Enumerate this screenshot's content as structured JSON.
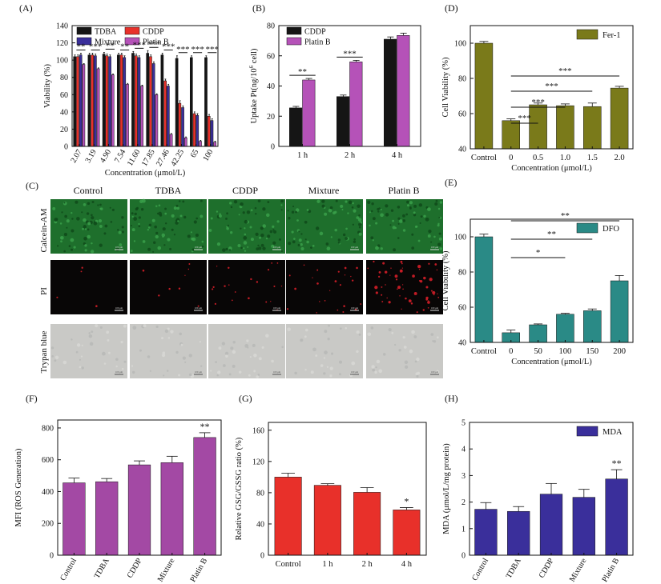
{
  "colors": {
    "black": "#151515",
    "red": "#e8302a",
    "blue": "#3a2f9b",
    "pink": "#b552b8",
    "olive": "#7a7a1a",
    "teal": "#2a8a86",
    "purple_f": "#a349a4",
    "red_g": "#e8302a",
    "navy_h": "#3a2f9b"
  },
  "chart_data": [
    {
      "panel": "(A)",
      "type": "bar",
      "title": "",
      "ylabel": "Viability (%)",
      "xlabel": "Concentration (μmol/L)",
      "ylim": [
        0,
        140
      ],
      "yticks": [
        "0",
        "20",
        "40",
        "60",
        "80",
        "100",
        "120",
        "140"
      ],
      "categories": [
        "2.07",
        "3.19",
        "4.90",
        "7.54",
        "11.60",
        "17.85",
        "27.46",
        "42.25",
        "65",
        "100"
      ],
      "series": [
        {
          "name": "TDBA",
          "color": "#151515",
          "values": [
            104,
            106,
            107,
            106,
            108,
            108,
            106,
            102,
            103,
            103
          ],
          "err": [
            2,
            2,
            2,
            2,
            2,
            3,
            2,
            3,
            2,
            2
          ]
        },
        {
          "name": "CDDP",
          "color": "#e8302a",
          "values": [
            104,
            106,
            105,
            106,
            105,
            104,
            76,
            50,
            38,
            35
          ],
          "err": [
            2,
            2,
            2,
            2,
            2,
            2,
            2,
            3,
            2,
            2
          ]
        },
        {
          "name": "Mixture",
          "color": "#3a2f9b",
          "values": [
            106,
            105,
            104,
            103,
            103,
            96,
            70,
            45,
            36,
            30
          ],
          "err": [
            2,
            2,
            2,
            2,
            2,
            2,
            2,
            2,
            2,
            2
          ]
        },
        {
          "name": "Platin B",
          "color": "#b552b8",
          "values": [
            95,
            90,
            83,
            72,
            70,
            60,
            14,
            10,
            6,
            5
          ],
          "err": [
            1,
            1,
            1,
            1,
            1,
            1,
            1,
            1,
            1,
            1
          ]
        }
      ],
      "annotations": [
        "**",
        "***",
        "**",
        "**",
        "***",
        "***",
        "***",
        "***",
        "***",
        "***"
      ]
    },
    {
      "panel": "(B)",
      "type": "bar",
      "ylabel": "Uptake Pt(ng/10",
      "ylabel_sup": "6",
      "ylabel_end": " cell)",
      "ylim": [
        0,
        80
      ],
      "yticks": [
        "0",
        "20",
        "40",
        "60",
        "80"
      ],
      "categories": [
        "1 h",
        "2 h",
        "4 h"
      ],
      "series": [
        {
          "name": "CDDP",
          "color": "#151515",
          "values": [
            25.5,
            33,
            71
          ],
          "err": [
            1,
            1,
            1.5
          ]
        },
        {
          "name": "Platin B",
          "color": "#b552b8",
          "values": [
            44,
            56,
            73.5
          ],
          "err": [
            1,
            1,
            1.5
          ]
        }
      ],
      "annotations": [
        "**",
        "***",
        ""
      ]
    },
    {
      "panel": "(D)",
      "type": "bar",
      "legend": "Fer-1",
      "ylabel": "Cell Viability (%)",
      "xlabel": "Concentration (μmol/L)",
      "ylim": [
        40,
        110
      ],
      "yticks": [
        "40",
        "60",
        "80",
        "100"
      ],
      "categories": [
        "Control",
        "0",
        "0.5",
        "1.0",
        "1.5",
        "2.0"
      ],
      "values": [
        100,
        56,
        65,
        64.5,
        64,
        74.5
      ],
      "err": [
        1,
        1,
        1,
        1,
        2,
        1
      ],
      "annotations": [
        "***",
        "***",
        "***",
        "***"
      ]
    },
    {
      "panel": "(E)",
      "type": "bar",
      "legend": "DFO",
      "ylabel": "Cell Viability (%)",
      "xlabel": "Concentration (μmol/L)",
      "ylim": [
        40,
        110
      ],
      "yticks": [
        "40",
        "60",
        "80",
        "100"
      ],
      "categories": [
        "Control",
        "0",
        "50",
        "100",
        "150",
        "200"
      ],
      "values": [
        100,
        45.5,
        50,
        56,
        58,
        75
      ],
      "err": [
        1.5,
        1.5,
        0.5,
        0.5,
        1,
        3
      ],
      "annotations": [
        "*",
        "**",
        "**"
      ]
    },
    {
      "panel": "(F)",
      "type": "bar",
      "ylabel": "MFI (ROS Generation)",
      "ylim": [
        0,
        850
      ],
      "yticks": [
        "0",
        "200",
        "400",
        "600",
        "800"
      ],
      "categories": [
        "Control",
        "TDBA",
        "CDDP",
        "Mixture",
        "Platin B"
      ],
      "values": [
        455,
        462,
        568,
        582,
        740
      ],
      "err": [
        30,
        20,
        25,
        40,
        30
      ],
      "annotations": [
        "",
        "",
        "",
        "",
        "**"
      ]
    },
    {
      "panel": "(G)",
      "type": "bar",
      "ylabel": "Relative GSG/GSSG ratio (%)",
      "ylim": [
        0,
        170
      ],
      "yticks": [
        "0",
        "40",
        "80",
        "120",
        "160"
      ],
      "categories": [
        "Control",
        "1 h",
        "2 h",
        "4 h"
      ],
      "values": [
        100,
        89.5,
        80.5,
        58
      ],
      "err": [
        5,
        2,
        6,
        3
      ],
      "annotations": [
        "",
        "",
        "",
        "*"
      ]
    },
    {
      "panel": "(H)",
      "type": "bar",
      "legend": "MDA",
      "ylabel": "MDA (μmol/L/mg protein)",
      "ylim": [
        0,
        5
      ],
      "yticks": [
        "0",
        "1",
        "2",
        "3",
        "4",
        "5"
      ],
      "categories": [
        "Control",
        "TDBA",
        "CDDP",
        "Mixture",
        "Platin B"
      ],
      "values": [
        1.73,
        1.65,
        2.3,
        2.18,
        2.87
      ],
      "err": [
        0.25,
        0.18,
        0.4,
        0.3,
        0.35
      ],
      "annotations": [
        "",
        "",
        "",
        "",
        "**"
      ]
    }
  ],
  "panel_c": {
    "label": "(C)",
    "columns": [
      "Control",
      "TDBA",
      "CDDP",
      "Mixture",
      "Platin B"
    ],
    "rows": [
      "Calcein-AM",
      "PI",
      "Trypan blue"
    ],
    "scale_bar": "100 μm",
    "pi_density": [
      1,
      2,
      5,
      6,
      14
    ]
  }
}
